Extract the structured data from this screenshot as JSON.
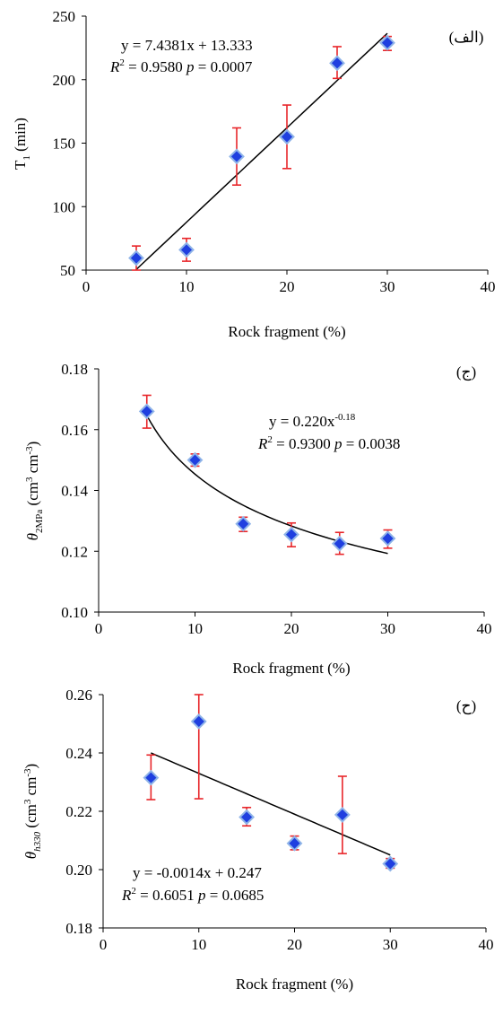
{
  "chart_data": [
    {
      "type": "scatter",
      "panel_label": "(الف)",
      "x": [
        5,
        10,
        15,
        20,
        25,
        30
      ],
      "y": [
        59.5,
        66,
        139.5,
        155,
        213,
        229
      ],
      "error_low": [
        50,
        57,
        117,
        130,
        201,
        223
      ],
      "error_high": [
        69,
        75,
        162,
        180,
        226,
        234
      ],
      "xlim": [
        0,
        40
      ],
      "ylim": [
        50,
        250
      ],
      "xticks": [
        "0",
        "10",
        "20",
        "30",
        "40"
      ],
      "yticks": [
        "50",
        "100",
        "150",
        "200",
        "250"
      ],
      "xlabel": "Rock fragment (%)",
      "ylabel": {
        "main": "T",
        "sub": "1",
        "rest": " (min)"
      },
      "fit": {
        "kind": "linear",
        "a": 7.4381,
        "b": 13.333,
        "x_range": [
          5,
          30
        ]
      },
      "equation": "y = 7.4381x + 13.333",
      "r2_label": "R",
      "r2_sup": "2",
      "r2_value": " = 0.9580",
      "p_label": "p",
      "p_value": " = 0.0007"
    },
    {
      "type": "scatter",
      "panel_label": "(ج)",
      "x": [
        5,
        10,
        15,
        20,
        25,
        30
      ],
      "y": [
        0.166,
        0.15,
        0.129,
        0.1255,
        0.1225,
        0.1242
      ],
      "error_low": [
        0.1605,
        0.148,
        0.1265,
        0.1215,
        0.119,
        0.121
      ],
      "error_high": [
        0.1713,
        0.152,
        0.1312,
        0.1293,
        0.1262,
        0.127
      ],
      "xlim": [
        0,
        40
      ],
      "ylim": [
        0.1,
        0.18
      ],
      "xticks": [
        "0",
        "10",
        "20",
        "30",
        "40"
      ],
      "yticks": [
        "0.10",
        "0.12",
        "0.14",
        "0.16",
        "0.18"
      ],
      "xlabel": "Rock fragment (%)",
      "ylabel": {
        "main": "θ",
        "sub": "2MPa",
        "rest": " (cm",
        "sup1": "3",
        "mid": " cm",
        "sup2": "-3",
        "end": ")"
      },
      "fit": {
        "kind": "power",
        "a": 0.22,
        "b": -0.18,
        "x_range": [
          5,
          30
        ]
      },
      "equation": "y = 0.220x",
      "equation_sup": "-0.18",
      "r2_label": "R",
      "r2_sup": "2",
      "r2_value": " = 0.9300",
      "p_label": "p",
      "p_value": " = 0.0038"
    },
    {
      "type": "scatter",
      "panel_label": "(ح)",
      "x": [
        5,
        10,
        15,
        20,
        25,
        30
      ],
      "y": [
        0.2315,
        0.2508,
        0.218,
        0.209,
        0.2188,
        0.202
      ],
      "error_low": [
        0.224,
        0.2243,
        0.215,
        0.2068,
        0.2055,
        0.2005
      ],
      "error_high": [
        0.2393,
        0.2603,
        0.2213,
        0.2115,
        0.232,
        0.2038
      ],
      "xlim": [
        0,
        40
      ],
      "ylim": [
        0.18,
        0.26
      ],
      "xticks": [
        "0",
        "10",
        "20",
        "30",
        "40"
      ],
      "yticks": [
        "0.18",
        "0.20",
        "0.22",
        "0.24",
        "0.26"
      ],
      "xlabel": "Rock fragment (%)",
      "ylabel": {
        "main": "θ",
        "sub": "h330",
        "rest": "  (cm",
        "sup1": "3",
        "mid": " cm",
        "sup2": "-3",
        "end": ")"
      },
      "fit": {
        "kind": "linear",
        "a": -0.0014,
        "b": 0.247,
        "x_range": [
          5,
          30
        ]
      },
      "equation": "y = -0.0014x + 0.247",
      "r2_label": "R",
      "r2_sup": "2",
      "r2_value": " = 0.6051",
      "p_label": "p",
      "p_value": " = 0.0685"
    }
  ],
  "colors": {
    "marker_fill": "#1f3fe0",
    "marker_edge": "#8fb4e8",
    "error_bar": "#e8262a",
    "line": "#000000"
  }
}
